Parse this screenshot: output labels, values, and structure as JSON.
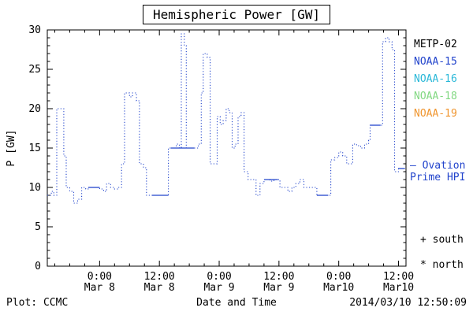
{
  "title": "Hemispheric Power [GW]",
  "footer": {
    "left": "Plot: CCMC",
    "right": "2014/03/10 12:50:09"
  },
  "y_axis": {
    "label": "P [GW]",
    "ticks": [
      0,
      5,
      10,
      15,
      20,
      25,
      30
    ]
  },
  "x_axis": {
    "label": "Date and Time",
    "minor_step_hours": 3,
    "major_ticks": [
      {
        "t": 0,
        "line1": "0:00",
        "line2": "Mar 8"
      },
      {
        "t": 12,
        "line1": "12:00",
        "line2": "Mar 8"
      },
      {
        "t": 24,
        "line1": "0:00",
        "line2": "Mar 9"
      },
      {
        "t": 36,
        "line1": "12:00",
        "line2": "Mar 9"
      },
      {
        "t": 48,
        "line1": "0:00",
        "line2": "Mar10"
      },
      {
        "t": 60,
        "line1": "12:00",
        "line2": "Mar10"
      }
    ]
  },
  "legend": [
    {
      "label": "METP-02",
      "color": "#000000"
    },
    {
      "label": "NOAA-15",
      "color": "#2244cc"
    },
    {
      "label": "NOAA-16",
      "color": "#2ab8d8"
    },
    {
      "label": "NOAA-18",
      "color": "#82d882"
    },
    {
      "label": "NOAA-19",
      "color": "#f0952e"
    }
  ],
  "ovation": {
    "marker": "—",
    "line1": "Ovation",
    "line2": "Prime HPI",
    "color": "#2244cc"
  },
  "markers": [
    {
      "symbol": "+",
      "label": "south"
    },
    {
      "symbol": "*",
      "label": "north"
    }
  ],
  "chart_data": {
    "type": "line",
    "style": "step-dotted",
    "title": "Hemispheric Power [GW]",
    "xlabel": "Date and Time",
    "ylabel": "P [GW]",
    "color": "#2244cc",
    "x_unit": "hours since Mar 8 00:00 UT",
    "xlim": [
      -10.5,
      61.5
    ],
    "ylim": [
      0,
      30
    ],
    "points": [
      [
        -10.5,
        9
      ],
      [
        -9.7,
        9.5
      ],
      [
        -9.2,
        9
      ],
      [
        -8.6,
        20
      ],
      [
        -7.8,
        20
      ],
      [
        -7.2,
        14
      ],
      [
        -6.7,
        10
      ],
      [
        -6,
        9.5
      ],
      [
        -5.2,
        8
      ],
      [
        -4.4,
        8.5
      ],
      [
        -3.6,
        10
      ],
      [
        -2.8,
        9.8
      ],
      [
        -2.3,
        10
      ],
      [
        -1.2,
        10
      ],
      [
        0,
        9.8
      ],
      [
        0.8,
        9.5
      ],
      [
        1.4,
        10.5
      ],
      [
        2.2,
        10
      ],
      [
        3,
        9.8
      ],
      [
        3.8,
        10
      ],
      [
        4.4,
        13
      ],
      [
        5,
        22
      ],
      [
        6,
        21.5
      ],
      [
        6.6,
        22
      ],
      [
        7.4,
        21
      ],
      [
        8,
        13
      ],
      [
        8.8,
        12.5
      ],
      [
        9.4,
        9
      ],
      [
        10.5,
        9
      ],
      [
        12,
        9
      ],
      [
        13.8,
        15
      ],
      [
        14.6,
        15
      ],
      [
        15.4,
        15.5
      ],
      [
        16,
        15
      ],
      [
        16.4,
        29.5
      ],
      [
        17,
        28
      ],
      [
        17.4,
        15
      ],
      [
        18.2,
        15
      ],
      [
        19,
        15
      ],
      [
        19.8,
        15.5
      ],
      [
        20.4,
        22
      ],
      [
        20.8,
        27
      ],
      [
        21.6,
        26.5
      ],
      [
        22.2,
        13
      ],
      [
        23,
        13
      ],
      [
        23.6,
        19
      ],
      [
        24.2,
        18
      ],
      [
        24.8,
        18.5
      ],
      [
        25.4,
        20
      ],
      [
        26,
        19.5
      ],
      [
        26.6,
        15
      ],
      [
        27.2,
        15.5
      ],
      [
        27.8,
        19
      ],
      [
        28.4,
        19.5
      ],
      [
        29,
        12
      ],
      [
        29.8,
        11
      ],
      [
        30.6,
        11
      ],
      [
        31.4,
        9
      ],
      [
        32.2,
        10.5
      ],
      [
        33,
        11
      ],
      [
        34.2,
        10.8
      ],
      [
        35,
        11
      ],
      [
        36.2,
        10
      ],
      [
        37,
        10
      ],
      [
        37.8,
        9.5
      ],
      [
        38.6,
        10
      ],
      [
        39.4,
        10.5
      ],
      [
        40.2,
        11
      ],
      [
        41,
        10
      ],
      [
        42.6,
        10
      ],
      [
        43.6,
        9
      ],
      [
        45,
        9
      ],
      [
        45.9,
        9
      ],
      [
        46.4,
        13.5
      ],
      [
        47.2,
        13.8
      ],
      [
        48,
        14.5
      ],
      [
        48.8,
        14
      ],
      [
        49.6,
        13
      ],
      [
        50.2,
        13
      ],
      [
        50.8,
        15.5
      ],
      [
        51.6,
        15.3
      ],
      [
        52.4,
        15
      ],
      [
        53.2,
        15.5
      ],
      [
        54,
        16
      ],
      [
        54.3,
        17.9
      ],
      [
        55.5,
        17.9
      ],
      [
        56.4,
        17.9
      ],
      [
        56.8,
        28.5
      ],
      [
        57.4,
        29
      ],
      [
        58.1,
        28.5
      ],
      [
        58.7,
        27.5
      ],
      [
        59.2,
        12
      ],
      [
        60,
        12.4
      ],
      [
        61.3,
        12.4
      ]
    ],
    "solid_segments": [
      [
        -2.3,
        0,
        10
      ],
      [
        10.5,
        13.8,
        9
      ],
      [
        14.3,
        19,
        15
      ],
      [
        33,
        35.8,
        11
      ],
      [
        43.6,
        45.9,
        9
      ],
      [
        54.3,
        56.4,
        17.9
      ],
      [
        60,
        61.3,
        12.4
      ]
    ]
  }
}
